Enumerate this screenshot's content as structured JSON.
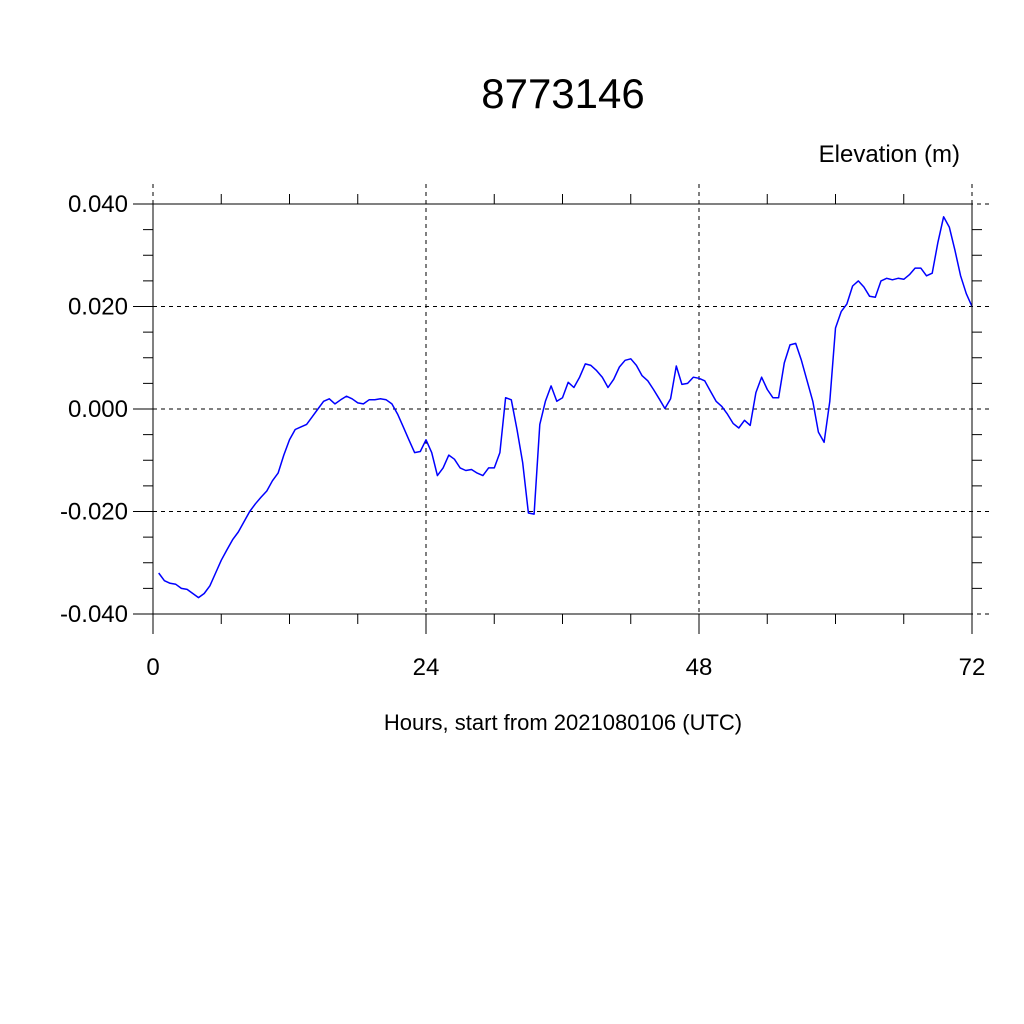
{
  "chart_data": {
    "type": "line",
    "title": "8773146",
    "ylabel": "Elevation (m)",
    "xlabel": "Hours, start from 2021080106 (UTC)",
    "xlim": [
      0,
      72
    ],
    "ylim": [
      -0.04,
      0.04
    ],
    "x_major_ticks": [
      0,
      24,
      48,
      72
    ],
    "x_tick_labels": [
      "0",
      "24",
      "48",
      "72"
    ],
    "y_major_ticks": [
      -0.04,
      -0.02,
      0.0,
      0.02,
      0.04
    ],
    "y_tick_labels": [
      "-0.040",
      "-0.020",
      "0.000",
      "0.020",
      "0.040"
    ],
    "grid": true,
    "grid_style": "dashed",
    "series": [
      {
        "color": "#0000ff",
        "x": [
          0.5,
          1,
          1.5,
          2,
          2.5,
          3,
          3.5,
          4,
          4.5,
          5,
          5.5,
          6,
          6.5,
          7,
          7.5,
          8,
          8.5,
          9,
          9.5,
          10,
          10.5,
          11,
          11.5,
          12,
          12.5,
          13,
          13.5,
          14,
          14.5,
          15,
          15.5,
          16,
          16.5,
          17,
          17.5,
          18,
          18.5,
          19,
          19.5,
          20,
          20.5,
          21,
          21.5,
          22,
          22.5,
          23,
          23.5,
          24,
          24.5,
          25,
          25.5,
          26,
          26.5,
          27,
          27.5,
          28,
          28.5,
          29,
          29.5,
          30,
          30.5,
          31,
          31.5,
          32,
          32.5,
          33,
          33.5,
          34,
          34.5,
          35,
          35.5,
          36,
          36.5,
          37,
          37.5,
          38,
          38.5,
          39,
          39.5,
          40,
          40.5,
          41,
          41.5,
          42,
          42.5,
          43,
          43.5,
          44,
          44.5,
          45,
          45.5,
          46,
          46.5,
          47,
          47.5,
          48,
          48.5,
          49,
          49.5,
          50,
          50.5,
          51,
          51.5,
          52,
          52.5,
          53,
          53.5,
          54,
          54.5,
          55,
          55.5,
          56,
          56.5,
          57,
          57.5,
          58,
          58.5,
          59,
          59.5,
          60,
          60.5,
          61,
          61.5,
          62,
          62.5,
          63,
          63.5,
          64,
          64.5,
          65,
          65.5,
          66,
          66.5,
          67,
          67.5,
          68,
          68.5,
          69,
          69.5,
          70,
          70.5,
          71,
          71.5,
          72
        ],
        "y": [
          -0.032,
          -0.0335,
          -0.034,
          -0.0342,
          -0.035,
          -0.0352,
          -0.036,
          -0.0368,
          -0.036,
          -0.0345,
          -0.032,
          -0.0295,
          -0.0275,
          -0.0255,
          -0.024,
          -0.022,
          -0.02,
          -0.0185,
          -0.0172,
          -0.016,
          -0.014,
          -0.0125,
          -0.009,
          -0.006,
          -0.004,
          -0.0035,
          -0.003,
          -0.0015,
          0.0,
          0.0015,
          0.002,
          0.001,
          0.0018,
          0.0025,
          0.002,
          0.0012,
          0.001,
          0.0018,
          0.0018,
          0.002,
          0.0018,
          0.001,
          -0.001,
          -0.0035,
          -0.006,
          -0.0085,
          -0.0083,
          -0.006,
          -0.0085,
          -0.013,
          -0.0115,
          -0.009,
          -0.0098,
          -0.0115,
          -0.012,
          -0.0118,
          -0.0125,
          -0.013,
          -0.0115,
          -0.0115,
          -0.0085,
          0.0022,
          0.0018,
          -0.004,
          -0.0105,
          -0.0203,
          -0.0205,
          -0.003,
          0.0015,
          0.0045,
          0.0015,
          0.0022,
          0.0052,
          0.0042,
          0.0062,
          0.0088,
          0.0085,
          0.0075,
          0.0062,
          0.0042,
          0.0058,
          0.0082,
          0.0095,
          0.0098,
          0.0085,
          0.0065,
          0.0055,
          0.0038,
          0.002,
          0.0001,
          0.002,
          0.0084,
          0.0048,
          0.005,
          0.0062,
          0.006,
          0.0055,
          0.0035,
          0.0015,
          0.0005,
          -0.001,
          -0.0028,
          -0.0037,
          -0.0022,
          -0.0032,
          0.0032,
          0.0062,
          0.0038,
          0.0022,
          0.0022,
          0.009,
          0.0125,
          0.0128,
          0.0095,
          0.0055,
          0.0015,
          -0.0045,
          -0.0065,
          0.0015,
          0.0158,
          0.019,
          0.0205,
          0.024,
          0.025,
          0.0238,
          0.022,
          0.0218,
          0.025,
          0.0255,
          0.0252,
          0.0255,
          0.0253,
          0.0262,
          0.0275,
          0.0275,
          0.026,
          0.0265,
          0.0325,
          0.0375,
          0.0355,
          0.031,
          0.026,
          0.0225,
          0.02
        ]
      }
    ]
  }
}
